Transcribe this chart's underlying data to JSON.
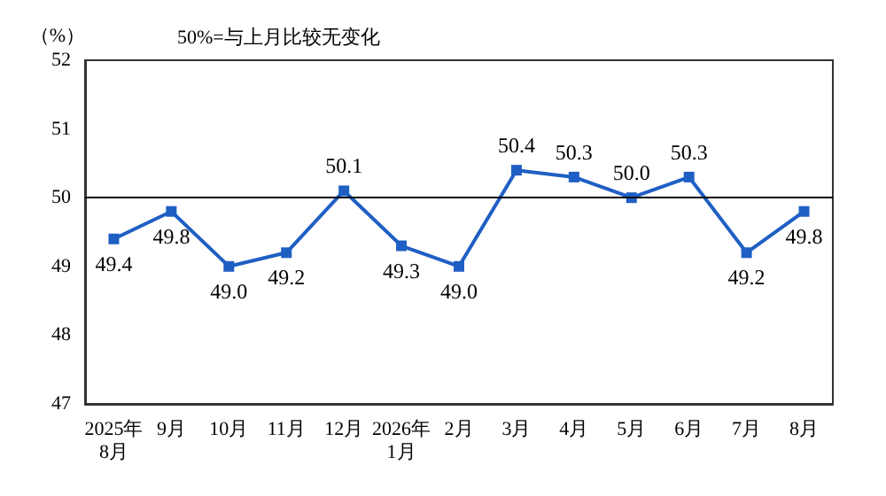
{
  "chart_data": {
    "type": "line",
    "ylabel": "（%）",
    "annotations": [
      "50%=与上月比较无变化"
    ],
    "categories": [
      "2025年\n8月",
      "9月",
      "10月",
      "11月",
      "12月",
      "2026年\n1月",
      "2月",
      "3月",
      "4月",
      "5月",
      "6月",
      "7月",
      "8月"
    ],
    "series": [
      {
        "color": "#1f5fc4",
        "values": [
          49.4,
          49.8,
          49.0,
          49.2,
          50.1,
          49.3,
          49.0,
          50.4,
          50.3,
          50.0,
          50.3,
          49.2,
          49.8
        ],
        "value_labels": [
          "49.4",
          "49.8",
          "49.0",
          "49.2",
          "50.1",
          "49.3",
          "49.0",
          "50.4",
          "50.3",
          "50.0",
          "50.3",
          "49.2",
          "49.8"
        ]
      }
    ],
    "ylim": [
      47,
      52
    ],
    "yticks": [
      47,
      48,
      49,
      50,
      51,
      52
    ],
    "grid": false,
    "marker": "square",
    "line_style": "solid",
    "ref_lines": [
      {
        "axis": "y",
        "value": 50,
        "color": "#000000"
      }
    ]
  }
}
